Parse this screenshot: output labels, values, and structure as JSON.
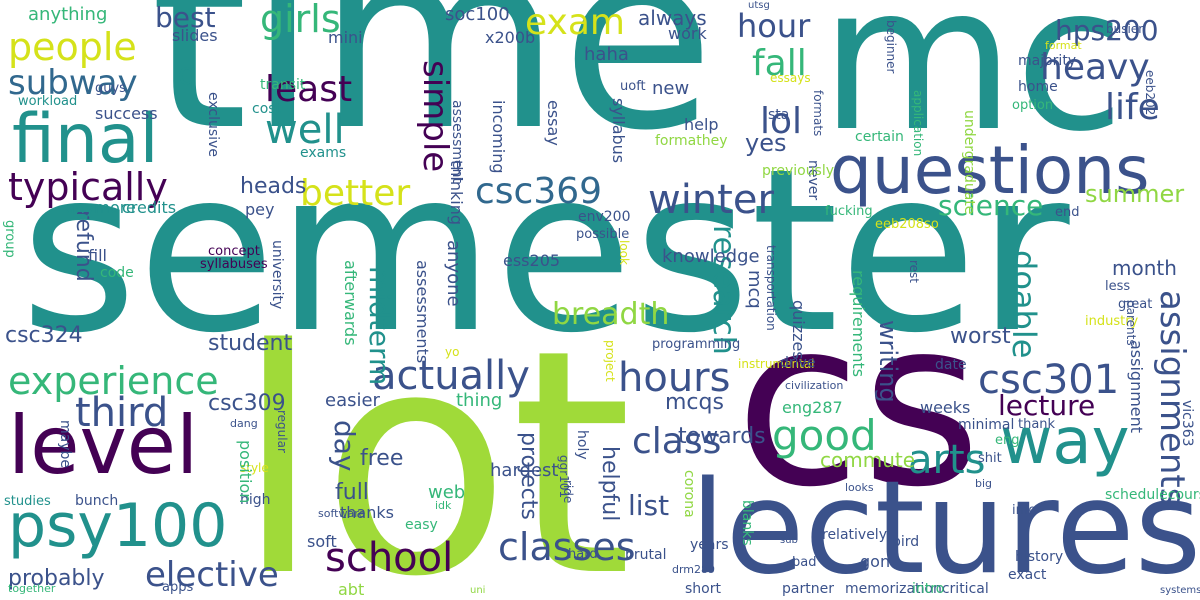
{
  "palette": {
    "dark_purple": "#440154",
    "indigo": "#3b528b",
    "teal": "#21918c",
    "green": "#35b779",
    "lime": "#90d743",
    "yellow": "#fde725"
  },
  "words": [
    {
      "text": "time",
      "color": "#21918c"
    },
    {
      "text": "mc",
      "color": "#21918c"
    },
    {
      "text": "semester",
      "color": "#21918c"
    },
    {
      "text": "lot",
      "color": "#a0da39"
    },
    {
      "text": "cs",
      "color": "#440154"
    },
    {
      "text": "lectures",
      "color": "#3b528b"
    },
    {
      "text": "questions",
      "color": "#3b528b"
    },
    {
      "text": "final",
      "color": "#21918c"
    },
    {
      "text": "level",
      "color": "#440154"
    },
    {
      "text": "psy100",
      "color": "#21918c"
    },
    {
      "text": "way",
      "color": "#21918c"
    },
    {
      "text": "typically",
      "color": "#440154"
    },
    {
      "text": "people",
      "color": "#d5e21a"
    },
    {
      "text": "exam",
      "color": "#d5e21a"
    },
    {
      "text": "girls",
      "color": "#35b779"
    },
    {
      "text": "experience",
      "color": "#35b779"
    },
    {
      "text": "actually",
      "color": "#3b528b"
    },
    {
      "text": "hours",
      "color": "#3b528b"
    },
    {
      "text": "csc301",
      "color": "#3b528b"
    },
    {
      "text": "csc369",
      "color": "#31688e"
    },
    {
      "text": "better",
      "color": "#d5e21a"
    },
    {
      "text": "class",
      "color": "#3b528b"
    },
    {
      "text": "classes",
      "color": "#3b528b"
    },
    {
      "text": "school",
      "color": "#440154"
    },
    {
      "text": "elective",
      "color": "#3b528b"
    },
    {
      "text": "third",
      "color": "#3b528b"
    },
    {
      "text": "good",
      "color": "#35b779"
    },
    {
      "text": "arts",
      "color": "#21918c"
    },
    {
      "text": "winter",
      "color": "#3b528b"
    },
    {
      "text": "heavy",
      "color": "#3b528b"
    },
    {
      "text": "well",
      "color": "#21918c"
    },
    {
      "text": "subway",
      "color": "#31688e"
    },
    {
      "text": "simple",
      "color": "#440154"
    },
    {
      "text": "least",
      "color": "#440154"
    },
    {
      "text": "lol",
      "color": "#3b528b"
    },
    {
      "text": "hour",
      "color": "#3b528b"
    },
    {
      "text": "fall",
      "color": "#35b779"
    },
    {
      "text": "hps200",
      "color": "#3b528b"
    },
    {
      "text": "life",
      "color": "#3b528b"
    },
    {
      "text": "assignments",
      "color": "#3b528b"
    },
    {
      "text": "doable",
      "color": "#21918c"
    },
    {
      "text": "breadth",
      "color": "#90d743"
    },
    {
      "text": "midterm",
      "color": "#21918c"
    },
    {
      "text": "research",
      "color": "#21918c"
    },
    {
      "text": "science",
      "color": "#35b779"
    },
    {
      "text": "summer",
      "color": "#90d743"
    },
    {
      "text": "lecture",
      "color": "#440154"
    },
    {
      "text": "writing",
      "color": "#3b528b"
    },
    {
      "text": "day",
      "color": "#3b528b"
    },
    {
      "text": "best",
      "color": "#3b528b"
    },
    {
      "text": "q",
      "color": "#21918c"
    },
    {
      "text": "yes",
      "color": "#3b528b"
    },
    {
      "text": "full",
      "color": "#3b528b"
    },
    {
      "text": "list",
      "color": "#3b528b"
    },
    {
      "text": "web",
      "color": "#35b779"
    },
    {
      "text": "helpful",
      "color": "#3b528b"
    },
    {
      "text": "projects",
      "color": "#3b528b"
    },
    {
      "text": "free",
      "color": "#3b528b"
    },
    {
      "text": "probably",
      "color": "#3b528b"
    },
    {
      "text": "csc324",
      "color": "#3b528b"
    },
    {
      "text": "csc309",
      "color": "#3b528b"
    },
    {
      "text": "student",
      "color": "#3b528b"
    },
    {
      "text": "worst",
      "color": "#3b528b"
    },
    {
      "text": "refund",
      "color": "#35b779"
    },
    {
      "text": "anything",
      "color": "#3b528b"
    },
    {
      "text": "success",
      "color": "#21918c"
    },
    {
      "text": "workload",
      "color": "#3b528b"
    },
    {
      "text": "guys",
      "color": "#3b528b"
    },
    {
      "text": "slides",
      "color": "#3b528b"
    },
    {
      "text": "mini",
      "color": "#35b779"
    },
    {
      "text": "transit",
      "color": "#21918c"
    },
    {
      "text": "cost",
      "color": "#3b528b"
    },
    {
      "text": "exclusive",
      "color": "#21918c"
    },
    {
      "text": "exams",
      "color": "#21918c"
    },
    {
      "text": "anymore",
      "color": "#21918c"
    },
    {
      "text": "credits",
      "color": "#3b528b"
    },
    {
      "text": "pey",
      "color": "#3b528b"
    },
    {
      "text": "heads",
      "color": "#3b528b"
    },
    {
      "text": "fill",
      "color": "#35b779"
    },
    {
      "text": "code",
      "color": "#440154"
    },
    {
      "text": "concept",
      "color": "#440154"
    },
    {
      "text": "syllabuses",
      "color": "#3b528b"
    },
    {
      "text": "university",
      "color": "#35b779"
    },
    {
      "text": "group",
      "color": "#3b528b"
    },
    {
      "text": "soc100",
      "color": "#3b528b"
    },
    {
      "text": "x200b",
      "color": "#3b528b"
    },
    {
      "text": "always",
      "color": "#3b528b"
    },
    {
      "text": "work",
      "color": "#3b528b"
    },
    {
      "text": "haha",
      "color": "#3b528b"
    },
    {
      "text": "uoft",
      "color": "#3b528b"
    },
    {
      "text": "new",
      "color": "#3b528b"
    },
    {
      "text": "help",
      "color": "#90d743"
    },
    {
      "text": "formathey",
      "color": "#3b528b"
    },
    {
      "text": "syllabus",
      "color": "#3b528b"
    },
    {
      "text": "incoming",
      "color": "#3b528b"
    },
    {
      "text": "assessment",
      "color": "#3b528b"
    },
    {
      "text": "thinking",
      "color": "#3b528b"
    },
    {
      "text": "essay",
      "color": "#3b528b"
    },
    {
      "text": "env200",
      "color": "#3b528b"
    },
    {
      "text": "possible",
      "color": "#d5e21a"
    },
    {
      "text": "look",
      "color": "#3b528b"
    },
    {
      "text": "ess205",
      "color": "#3b528b"
    },
    {
      "text": "knowledge",
      "color": "#35b779"
    },
    {
      "text": "afterwards",
      "color": "#3b528b"
    },
    {
      "text": "assessments",
      "color": "#3b528b"
    },
    {
      "text": "anyone",
      "color": "#d5e21a"
    },
    {
      "text": "yo",
      "color": "#3b528b"
    },
    {
      "text": "programming",
      "color": "#d5e21a"
    },
    {
      "text": "project",
      "color": "#3b528b"
    },
    {
      "text": "mcq",
      "color": "#3b528b"
    },
    {
      "text": "quizzes",
      "color": "#35b779"
    },
    {
      "text": "requirements",
      "color": "#3b528b"
    },
    {
      "text": "transportation",
      "color": "#3b528b"
    },
    {
      "text": "rest",
      "color": "#d5e21a"
    },
    {
      "text": "instrumental",
      "color": "#3b528b"
    },
    {
      "text": "drive",
      "color": "#3b528b"
    },
    {
      "text": "date",
      "color": "#3b528b"
    },
    {
      "text": "majority",
      "color": "#3b528b"
    },
    {
      "text": "home",
      "color": "#3b528b"
    },
    {
      "text": "eeb202",
      "color": "#3b528b"
    },
    {
      "text": "busier",
      "color": "#d5e21a"
    },
    {
      "text": "format",
      "color": "#3b528b"
    },
    {
      "text": "formats",
      "color": "#3b528b"
    },
    {
      "text": "beginner",
      "color": "#35b779"
    },
    {
      "text": "application",
      "color": "#90d743"
    },
    {
      "text": "undergraduate",
      "color": "#35b779"
    },
    {
      "text": "option",
      "color": "#35b779"
    },
    {
      "text": "certain",
      "color": "#3b528b"
    },
    {
      "text": "never",
      "color": "#3b528b"
    },
    {
      "text": "sta",
      "color": "#d5e21a"
    },
    {
      "text": "essays",
      "color": "#90d743"
    },
    {
      "text": "previously",
      "color": "#35b779"
    },
    {
      "text": "fucking",
      "color": "#d5e21a"
    },
    {
      "text": "eeb208so",
      "color": "#3b528b"
    },
    {
      "text": "end",
      "color": "#3b528b"
    },
    {
      "text": "month",
      "color": "#3b528b"
    },
    {
      "text": "less",
      "color": "#3b528b"
    },
    {
      "text": "great",
      "color": "#d5e21a"
    },
    {
      "text": "industry",
      "color": "#3b528b"
    },
    {
      "text": "parents",
      "color": "#3b528b"
    },
    {
      "text": "assignment",
      "color": "#3b528b"
    },
    {
      "text": "utsg",
      "color": "#3b528b"
    },
    {
      "text": "easier",
      "color": "#35b779"
    },
    {
      "text": "thing",
      "color": "#3b528b"
    },
    {
      "text": "mcqs",
      "color": "#3b528b"
    },
    {
      "text": "towards",
      "color": "#90d743"
    },
    {
      "text": "commute",
      "color": "#35b779"
    },
    {
      "text": "eng287",
      "color": "#3b528b"
    },
    {
      "text": "weeks",
      "color": "#3b528b"
    },
    {
      "text": "minimal",
      "color": "#3b528b"
    },
    {
      "text": "thank",
      "color": "#3b528b"
    },
    {
      "text": "shit",
      "color": "#35b779"
    },
    {
      "text": "eng",
      "color": "#3b528b"
    },
    {
      "text": "big",
      "color": "#3b528b"
    },
    {
      "text": "looks",
      "color": "#3b528b"
    },
    {
      "text": "info",
      "color": "#35b779"
    },
    {
      "text": "schedulecourses",
      "color": "#3b528b"
    },
    {
      "text": "vic363",
      "color": "#3b528b"
    },
    {
      "text": "history",
      "color": "#3b528b"
    },
    {
      "text": "relatively",
      "color": "#3b528b"
    },
    {
      "text": "bird",
      "color": "#35b779"
    },
    {
      "text": "blanks",
      "color": "#3b528b"
    },
    {
      "text": "bad",
      "color": "#3b528b"
    },
    {
      "text": "gon",
      "color": "#3b528b"
    },
    {
      "text": "exact",
      "color": "#3b528b"
    },
    {
      "text": "years",
      "color": "#90d743"
    },
    {
      "text": "corona",
      "color": "#3b528b"
    },
    {
      "text": "brutal",
      "color": "#3b528b"
    },
    {
      "text": "hard",
      "color": "#3b528b"
    },
    {
      "text": "drm289",
      "color": "#3b528b"
    },
    {
      "text": "short",
      "color": "#3b528b"
    },
    {
      "text": "partner",
      "color": "#3b528b"
    },
    {
      "text": "memorizationcritical",
      "color": "#35b779"
    },
    {
      "text": "intro",
      "color": "#3b528b"
    },
    {
      "text": "systems",
      "color": "#3b528b"
    },
    {
      "text": "sub",
      "color": "#3b528b"
    },
    {
      "text": "ride",
      "color": "#3b528b"
    },
    {
      "text": "holy",
      "color": "#3b528b"
    },
    {
      "text": "ggr101",
      "color": "#3b528b"
    },
    {
      "text": "hardest",
      "color": "#3b528b"
    },
    {
      "text": "civilization",
      "color": "#90d743"
    },
    {
      "text": "abt",
      "color": "#90d743"
    },
    {
      "text": "uni",
      "color": "#3b528b"
    },
    {
      "text": "soft",
      "color": "#3b528b"
    },
    {
      "text": "thanks",
      "color": "#3b528b"
    },
    {
      "text": "apps",
      "color": "#35b779"
    },
    {
      "text": "easy",
      "color": "#35b779"
    },
    {
      "text": "idk",
      "color": "#3b528b"
    },
    {
      "text": "software",
      "color": "#35b779"
    },
    {
      "text": "together",
      "color": "#21918c"
    },
    {
      "text": "studies",
      "color": "#3b528b"
    },
    {
      "text": "bunch",
      "color": "#3b528b"
    },
    {
      "text": "high",
      "color": "#d5e21a"
    },
    {
      "text": "style",
      "color": "#35b779"
    },
    {
      "text": "position",
      "color": "#3b528b"
    },
    {
      "text": "regular",
      "color": "#3b528b"
    },
    {
      "text": "maybe",
      "color": "#3b528b"
    },
    {
      "text": "dang",
      "color": "#d5e21a"
    }
  ]
}
